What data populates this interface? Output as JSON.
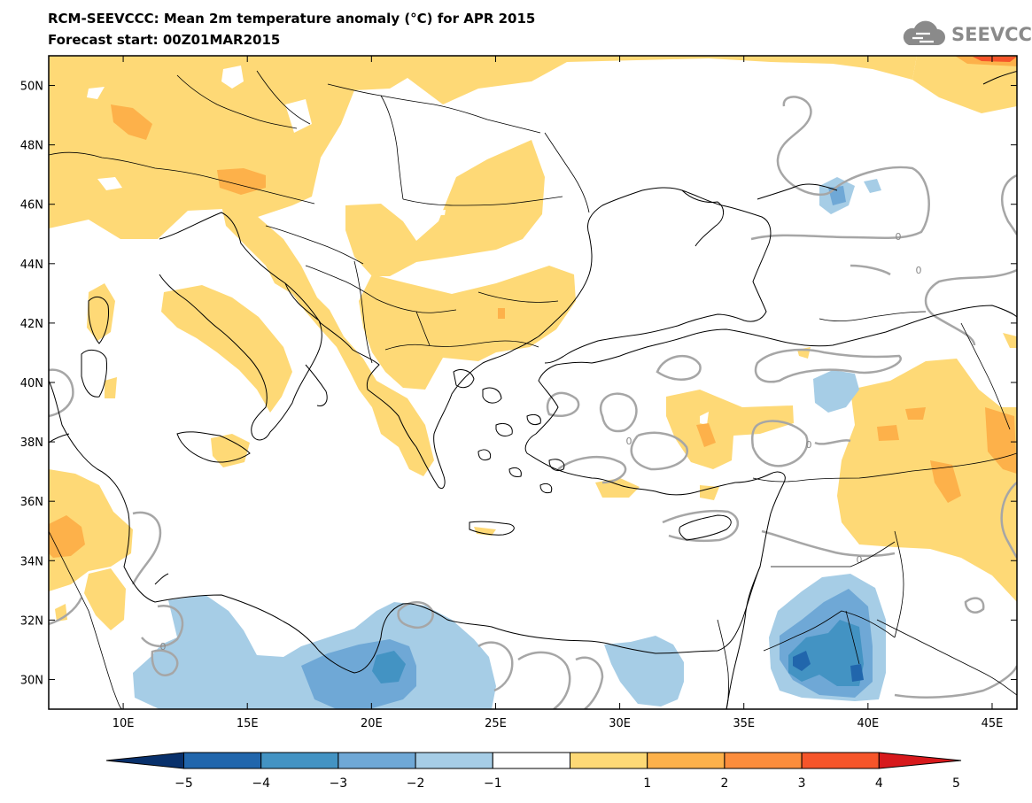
{
  "header": {
    "title": "RCM-SEEVCCC: Mean 2m temperature anomaly (°C) for APR 2015",
    "subtitle": "Forecast start: 00Z01MAR2015",
    "logo_text": "SEEVCCC",
    "logo_icon": "cloud-icon"
  },
  "map": {
    "lat_labels": [
      "50N",
      "48N",
      "46N",
      "44N",
      "42N",
      "40N",
      "38N",
      "36N",
      "34N",
      "32N",
      "30N"
    ],
    "lat_values": [
      50,
      48,
      46,
      44,
      42,
      40,
      38,
      36,
      34,
      32,
      30
    ],
    "lon_labels": [
      "10E",
      "15E",
      "20E",
      "25E",
      "30E",
      "35E",
      "40E",
      "45E"
    ],
    "lon_values": [
      10,
      15,
      20,
      25,
      30,
      35,
      40,
      45
    ],
    "lon_range": [
      7,
      46
    ],
    "lat_range": [
      29,
      51
    ],
    "contour_label": "0"
  },
  "colorbar": {
    "labels": [
      "−5",
      "−4",
      "−3",
      "−2",
      "−1",
      "1",
      "2",
      "3",
      "4",
      "5"
    ],
    "colors": [
      "#08306b",
      "#2166ac",
      "#4393c3",
      "#6fa8d6",
      "#a6cde6",
      "#ffffff",
      "#fed976",
      "#fdb14a",
      "#fc8d3c",
      "#f6552a",
      "#d7191c"
    ]
  }
}
